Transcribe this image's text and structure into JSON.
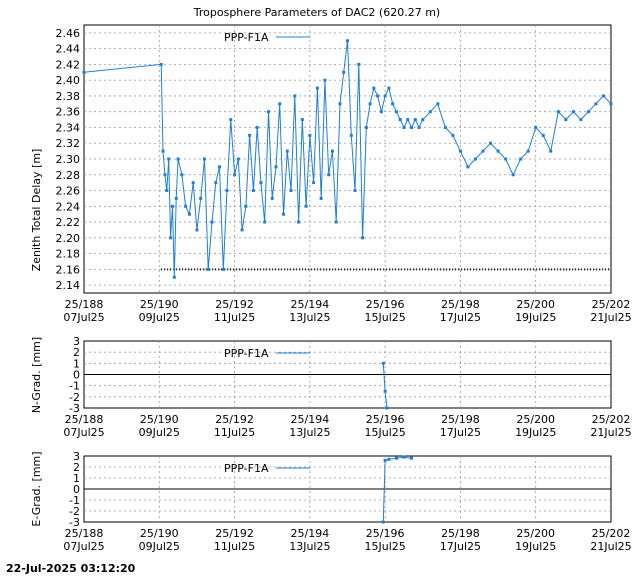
{
  "chart_data": [
    {
      "type": "line",
      "title": "Troposphere Parameters of DAC2 (620.27 m)",
      "ylabel": "Zenith Total Delay [m]",
      "legend": "PPP-F1A",
      "legend_position": "top-left",
      "grid": true,
      "ylim": [
        2.13,
        2.47
      ],
      "yticks": [
        "2.14",
        "2.16",
        "2.18",
        "2.20",
        "2.22",
        "2.24",
        "2.26",
        "2.28",
        "2.30",
        "2.32",
        "2.34",
        "2.36",
        "2.38",
        "2.40",
        "2.42",
        "2.44",
        "2.46"
      ],
      "xlim": [
        188,
        202
      ],
      "xticks": [
        {
          "doy": "25/188",
          "date": "07Jul25"
        },
        {
          "doy": "25/190",
          "date": "09Jul25"
        },
        {
          "doy": "25/192",
          "date": "11Jul25"
        },
        {
          "doy": "25/194",
          "date": "13Jul25"
        },
        {
          "doy": "25/196",
          "date": "15Jul25"
        },
        {
          "doy": "25/198",
          "date": "17Jul25"
        },
        {
          "doy": "25/200",
          "date": "19Jul25"
        },
        {
          "doy": "25/202",
          "date": "21Jul25"
        }
      ],
      "baseline": 2.16,
      "series": [
        {
          "name": "PPP-F1A",
          "color": "#1f7fd8",
          "x": [
            188.0,
            190.05,
            190.1,
            190.15,
            190.2,
            190.25,
            190.3,
            190.35,
            190.4,
            190.45,
            190.5,
            190.6,
            190.7,
            190.8,
            190.9,
            191.0,
            191.1,
            191.2,
            191.3,
            191.4,
            191.5,
            191.6,
            191.7,
            191.8,
            191.9,
            192.0,
            192.1,
            192.2,
            192.3,
            192.4,
            192.5,
            192.6,
            192.7,
            192.8,
            192.9,
            193.0,
            193.1,
            193.2,
            193.3,
            193.4,
            193.5,
            193.6,
            193.7,
            193.8,
            193.9,
            194.0,
            194.1,
            194.2,
            194.3,
            194.4,
            194.5,
            194.6,
            194.7,
            194.8,
            194.9,
            195.0,
            195.1,
            195.2,
            195.3,
            195.4,
            195.5,
            195.6,
            195.7,
            195.8,
            195.9,
            196.0,
            196.1,
            196.2,
            196.3,
            196.4,
            196.5,
            196.6,
            196.7,
            196.8,
            196.9,
            197.0,
            197.2,
            197.4,
            197.6,
            197.8,
            198.0,
            198.2,
            198.4,
            198.6,
            198.8,
            199.0,
            199.2,
            199.4,
            199.6,
            199.8,
            200.0,
            200.2,
            200.4,
            200.6,
            200.8,
            201.0,
            201.2,
            201.4,
            201.6,
            201.8,
            202.0
          ],
          "y": [
            2.41,
            2.42,
            2.31,
            2.28,
            2.26,
            2.3,
            2.2,
            2.24,
            2.15,
            2.25,
            2.3,
            2.28,
            2.24,
            2.23,
            2.27,
            2.21,
            2.25,
            2.3,
            2.16,
            2.22,
            2.27,
            2.29,
            2.16,
            2.26,
            2.35,
            2.28,
            2.3,
            2.21,
            2.24,
            2.33,
            2.26,
            2.34,
            2.27,
            2.22,
            2.36,
            2.25,
            2.29,
            2.37,
            2.23,
            2.31,
            2.26,
            2.38,
            2.22,
            2.35,
            2.24,
            2.33,
            2.27,
            2.39,
            2.25,
            2.4,
            2.28,
            2.31,
            2.22,
            2.37,
            2.41,
            2.45,
            2.33,
            2.26,
            2.42,
            2.2,
            2.34,
            2.37,
            2.39,
            2.38,
            2.36,
            2.38,
            2.39,
            2.37,
            2.36,
            2.35,
            2.34,
            2.35,
            2.34,
            2.35,
            2.34,
            2.35,
            2.36,
            2.37,
            2.34,
            2.33,
            2.31,
            2.29,
            2.3,
            2.31,
            2.32,
            2.31,
            2.3,
            2.28,
            2.3,
            2.31,
            2.34,
            2.33,
            2.31,
            2.36,
            2.35,
            2.36,
            2.35,
            2.36,
            2.37,
            2.38,
            2.37
          ]
        }
      ]
    },
    {
      "type": "line",
      "ylabel": "N-Grad. [mm]",
      "legend": "PPP-F1A",
      "legend_position": "top-left",
      "grid": true,
      "ylim": [
        -3,
        3
      ],
      "yticks": [
        "-3",
        "-2",
        "-1",
        "0",
        "1",
        "2",
        "3"
      ],
      "xlim": [
        188,
        202
      ],
      "series": [
        {
          "name": "PPP-F1A",
          "color": "#1f7fd8",
          "x": [
            195.95,
            196.0,
            196.05
          ],
          "y": [
            1.0,
            -1.5,
            -3.0
          ]
        }
      ]
    },
    {
      "type": "line",
      "ylabel": "E-Grad. [mm]",
      "legend": "PPP-F1A",
      "legend_position": "top-left",
      "grid": true,
      "ylim": [
        -3,
        3
      ],
      "yticks": [
        "-3",
        "-2",
        "-1",
        "0",
        "1",
        "2",
        "3"
      ],
      "xlim": [
        188,
        202
      ],
      "series": [
        {
          "name": "PPP-F1A",
          "color": "#1f7fd8",
          "x": [
            195.95,
            196.0,
            196.1,
            196.3,
            196.5,
            196.7
          ],
          "y": [
            -3.0,
            2.6,
            2.7,
            2.8,
            2.9,
            2.8
          ]
        }
      ]
    }
  ],
  "footer": {
    "timestamp": "22-Jul-2025 03:12:20"
  }
}
